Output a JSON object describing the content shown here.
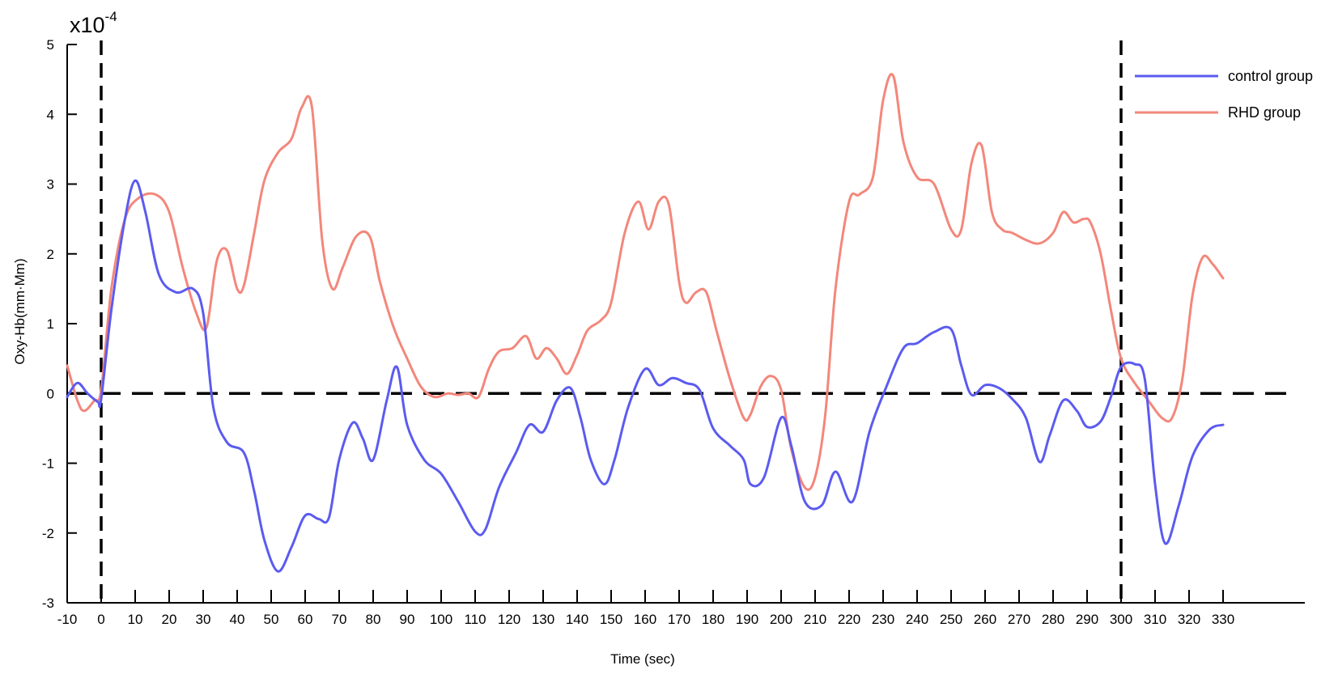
{
  "chart_data": {
    "type": "line",
    "title": "",
    "xlabel": "Time (sec)",
    "ylabel": "Oxy-Hb(mm·Mm)",
    "y_scale_label": {
      "base": "x10",
      "exponent": "-4"
    },
    "xlim": [
      -10,
      330
    ],
    "ylim": [
      -3,
      5
    ],
    "x_ticks": [
      -10,
      0,
      10,
      20,
      30,
      40,
      50,
      60,
      70,
      80,
      90,
      100,
      110,
      120,
      130,
      140,
      150,
      160,
      170,
      180,
      190,
      200,
      210,
      220,
      230,
      240,
      250,
      260,
      270,
      280,
      290,
      300,
      310,
      320,
      330
    ],
    "y_ticks": [
      -3,
      -2,
      -1,
      0,
      1,
      2,
      3,
      4,
      5
    ],
    "grid": false,
    "legend_position": "top-right",
    "reference_lines": {
      "vertical": [
        0,
        300
      ],
      "horizontal": [
        0
      ]
    },
    "series": [
      {
        "name": "control group",
        "color": "#5b5bf0",
        "x": [
          -10,
          -7,
          -4,
          -1,
          0,
          3,
          7,
          10,
          13,
          17,
          22,
          27,
          30,
          33,
          37,
          42,
          45,
          48,
          52,
          56,
          60,
          64,
          67,
          70,
          74,
          77,
          80,
          84,
          87,
          90,
          95,
          100,
          105,
          110,
          113,
          117,
          122,
          126,
          130,
          134,
          138,
          141,
          144,
          148,
          151,
          155,
          160,
          164,
          168,
          172,
          176,
          180,
          185,
          189,
          191,
          195,
          200,
          203,
          207,
          212,
          216,
          221,
          226,
          231,
          236,
          240,
          245,
          250,
          253,
          256,
          260,
          264,
          268,
          272,
          276,
          279,
          283,
          287,
          290,
          294,
          297,
          300,
          304,
          307,
          310,
          313,
          317,
          321,
          326,
          330
        ],
        "y": [
          -0.05,
          0.15,
          0.0,
          -0.12,
          -0.08,
          1.2,
          2.5,
          3.05,
          2.6,
          1.7,
          1.45,
          1.5,
          1.15,
          -0.2,
          -0.7,
          -0.85,
          -1.4,
          -2.1,
          -2.55,
          -2.2,
          -1.75,
          -1.8,
          -1.78,
          -0.95,
          -0.42,
          -0.65,
          -0.95,
          -0.1,
          0.38,
          -0.45,
          -0.95,
          -1.15,
          -1.55,
          -1.98,
          -1.95,
          -1.35,
          -0.85,
          -0.45,
          -0.55,
          -0.1,
          0.08,
          -0.35,
          -0.95,
          -1.3,
          -0.95,
          -0.2,
          0.35,
          0.12,
          0.22,
          0.15,
          0.05,
          -0.5,
          -0.75,
          -0.95,
          -1.3,
          -1.2,
          -0.35,
          -0.75,
          -1.55,
          -1.6,
          -1.12,
          -1.55,
          -0.55,
          0.1,
          0.65,
          0.72,
          0.88,
          0.92,
          0.4,
          -0.02,
          0.12,
          0.08,
          -0.08,
          -0.35,
          -0.98,
          -0.6,
          -0.1,
          -0.25,
          -0.48,
          -0.4,
          -0.05,
          0.38,
          0.42,
          0.2,
          -1.3,
          -2.15,
          -1.6,
          -0.9,
          -0.52,
          -0.45
        ]
      },
      {
        "name": "RHD group",
        "color": "#f3877b",
        "x": [
          -10,
          -7,
          -5,
          -2,
          0,
          3,
          7,
          11,
          16,
          20,
          24,
          28,
          31,
          34,
          37,
          40,
          42,
          45,
          48,
          52,
          56,
          59,
          62,
          65,
          68,
          71,
          75,
          79,
          82,
          86,
          90,
          94,
          98,
          102,
          105,
          108,
          111,
          114,
          117,
          121,
          125,
          128,
          131,
          134,
          137,
          140,
          143,
          147,
          150,
          154,
          158,
          161,
          164,
          167,
          170,
          172,
          175,
          178,
          181,
          185,
          189,
          191,
          194,
          197,
          200,
          203,
          207,
          210,
          213,
          216,
          220,
          223,
          227,
          230,
          233,
          236,
          240,
          245,
          250,
          253,
          256,
          259,
          262,
          265,
          268,
          272,
          276,
          280,
          283,
          286,
          289,
          291,
          294,
          297,
          300,
          304,
          308,
          312,
          315,
          318,
          321,
          324,
          327,
          330
        ],
        "y": [
          0.4,
          -0.1,
          -0.25,
          -0.1,
          0.05,
          1.5,
          2.5,
          2.8,
          2.85,
          2.6,
          1.8,
          1.15,
          0.95,
          1.9,
          2.05,
          1.5,
          1.55,
          2.3,
          3.05,
          3.45,
          3.65,
          4.1,
          4.1,
          2.2,
          1.5,
          1.8,
          2.25,
          2.25,
          1.6,
          0.95,
          0.5,
          0.1,
          -0.05,
          0.0,
          -0.02,
          0.0,
          -0.05,
          0.35,
          0.6,
          0.65,
          0.82,
          0.5,
          0.65,
          0.5,
          0.28,
          0.55,
          0.9,
          1.05,
          1.3,
          2.3,
          2.75,
          2.35,
          2.75,
          2.7,
          1.6,
          1.3,
          1.45,
          1.45,
          0.9,
          0.2,
          -0.35,
          -0.3,
          0.1,
          0.25,
          0.05,
          -0.8,
          -1.35,
          -1.2,
          -0.3,
          1.5,
          2.75,
          2.85,
          3.1,
          4.2,
          4.55,
          3.6,
          3.1,
          3.0,
          2.35,
          2.35,
          3.3,
          3.55,
          2.6,
          2.35,
          2.3,
          2.2,
          2.15,
          2.3,
          2.6,
          2.45,
          2.5,
          2.45,
          2.0,
          1.2,
          0.5,
          0.15,
          -0.1,
          -0.35,
          -0.35,
          0.2,
          1.4,
          1.95,
          1.85,
          1.65
        ]
      }
    ]
  }
}
